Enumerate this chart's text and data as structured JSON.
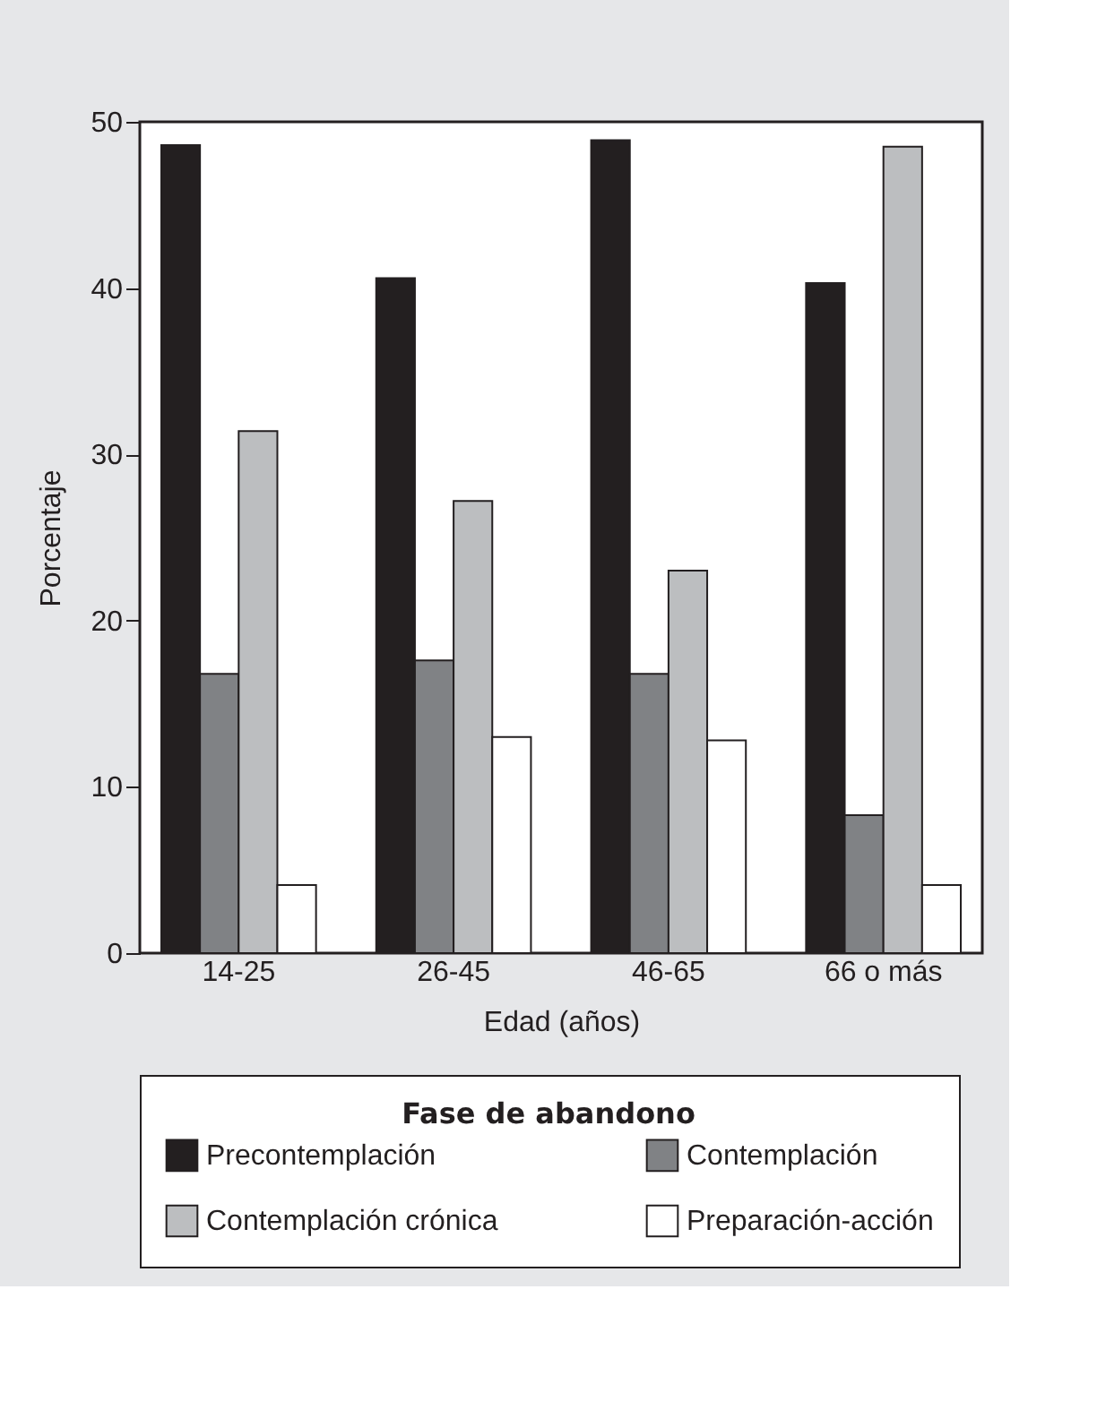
{
  "chart_data": {
    "type": "bar",
    "xlabel": "Edad (años)",
    "ylabel": "Porcentaje",
    "legend_title": "Fase de abandono",
    "categories": [
      "14-25",
      "26-45",
      "46-65",
      "66 o más"
    ],
    "series": [
      {
        "name": "Precontemplación",
        "color": "#231f20",
        "values": [
          48.6,
          40.6,
          48.9,
          40.3
        ]
      },
      {
        "name": "Contemplación",
        "color": "#808285",
        "values": [
          16.8,
          17.6,
          16.8,
          8.3
        ]
      },
      {
        "name": "Contemplación crónica",
        "color": "#bcbec0",
        "values": [
          31.4,
          27.2,
          23.0,
          48.5
        ]
      },
      {
        "name": "Preparación-acción",
        "color": "#ffffff",
        "values": [
          4.1,
          13.0,
          12.8,
          4.1
        ]
      }
    ],
    "ylim": [
      0,
      50
    ],
    "yticks": [
      0,
      10,
      20,
      30,
      40,
      50
    ],
    "grid": false,
    "legend": "bottom"
  }
}
